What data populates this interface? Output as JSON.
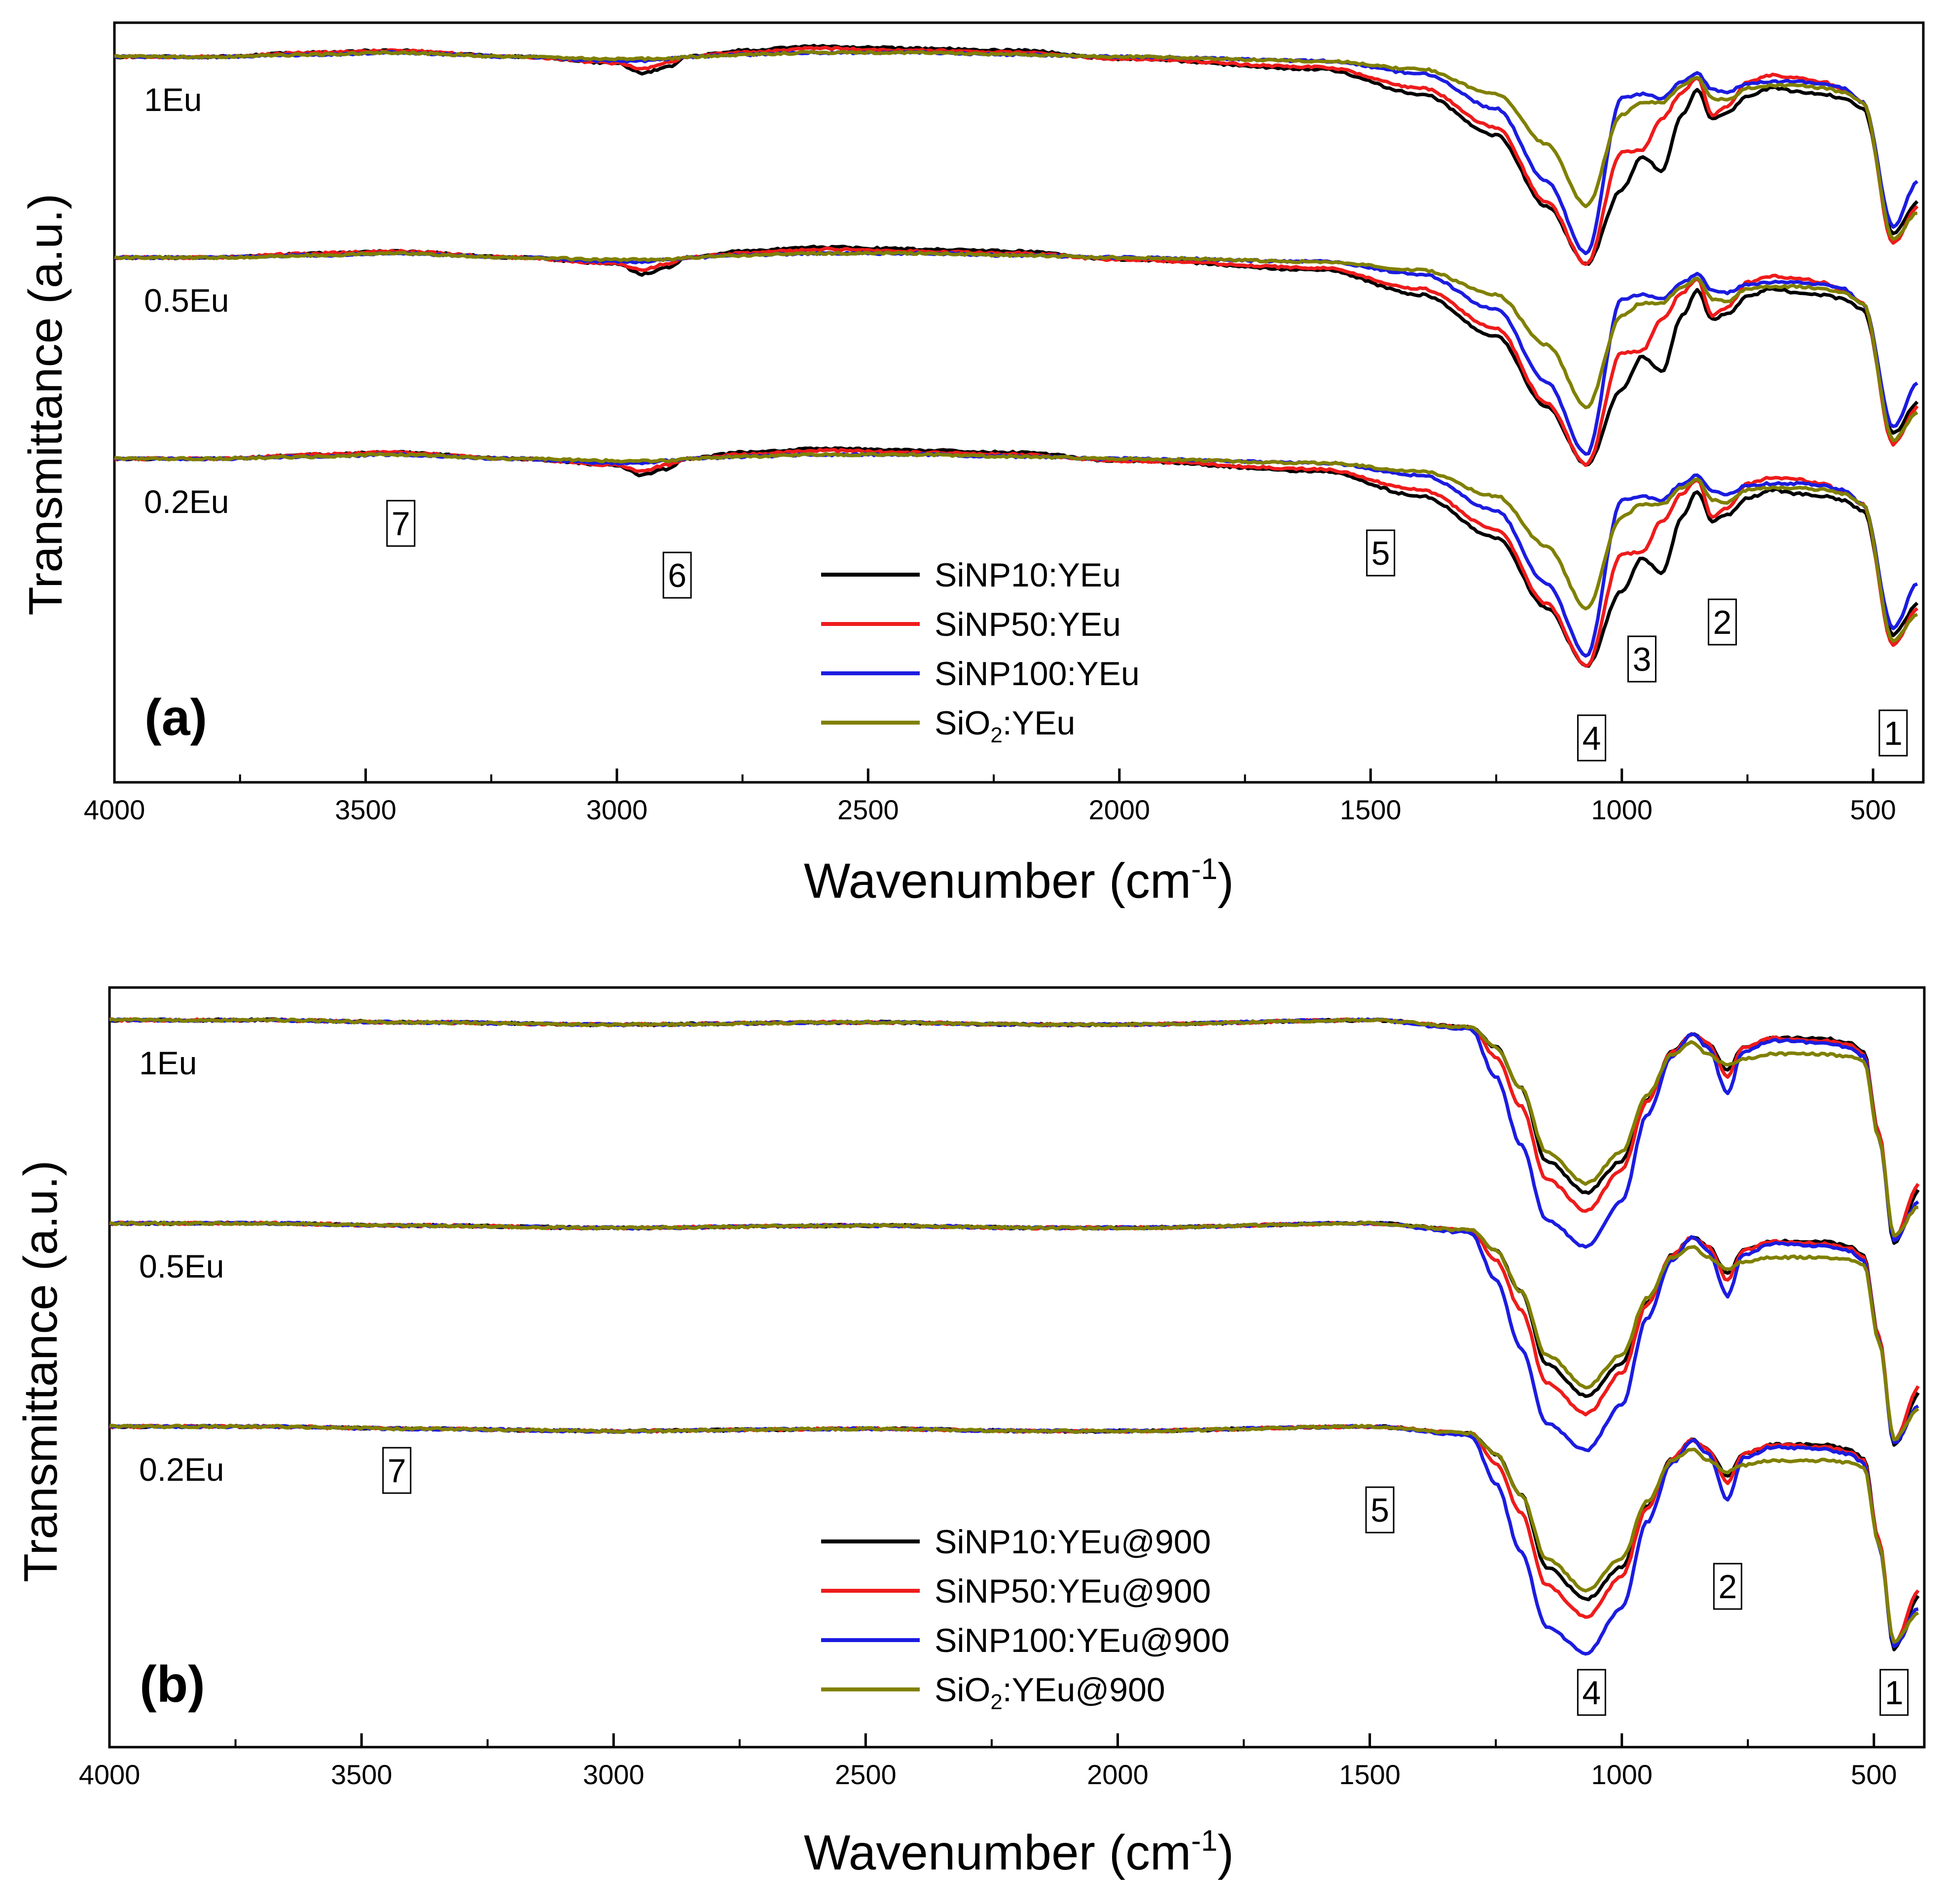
{
  "figure": {
    "panel_count": 2
  },
  "colors": {
    "SiNP10": "#000000",
    "SiNP50": "#ee1c1c",
    "SiNP100": "#1c1ce0",
    "SiO2": "#808000",
    "axis": "#000000"
  },
  "chart_data": [
    {
      "id": "a",
      "type": "line",
      "panel_label": "(a)",
      "xlabel_main": "Wavenumber (cm",
      "xlabel_sup": "-1",
      "xlabel_close": ")",
      "ylabel": "Transmittance (a.u.)",
      "xlim": [
        4000,
        400
      ],
      "x_reversed": true,
      "xticks": [
        4000,
        3500,
        3000,
        2500,
        2000,
        1500,
        1000,
        500
      ],
      "y_ticks_shown": false,
      "offset_groups": [
        "1Eu",
        "0.5Eu",
        "0.2Eu"
      ],
      "series": [
        {
          "name": "SiNP10:YEu",
          "name_main": "SiNP10:YEu",
          "name_sub": "",
          "name_tail": "",
          "color": "#000000",
          "values": [
            0,
            0,
            -0.02,
            -0.03,
            0,
            0.03,
            0.08,
            0.05,
            0,
            -0.03,
            -0.05,
            -0.04,
            -0.03,
            0.01,
            0.06,
            0.18,
            0.38,
            0.72,
            1.0,
            0.64,
            0.48,
            0.55,
            0.28,
            0.16,
            0.3,
            0.27,
            0.19,
            0.15,
            0.17,
            0.18,
            0.2,
            0.25,
            0.85,
            0.7
          ]
        },
        {
          "name": "SiNP50:YEu",
          "name_main": "SiNP50:YEu",
          "name_sub": "",
          "name_tail": "",
          "color": "#ee1c1c",
          "values": [
            0,
            0,
            -0.02,
            -0.03,
            0,
            0.03,
            0.06,
            0.03,
            0,
            -0.02,
            -0.04,
            -0.03,
            -0.02,
            0.01,
            0.05,
            0.15,
            0.34,
            0.7,
            1.0,
            0.46,
            0.45,
            0.3,
            0.17,
            0.1,
            0.28,
            0.24,
            0.12,
            0.09,
            0.1,
            0.12,
            0.16,
            0.22,
            0.9,
            0.72
          ]
        },
        {
          "name": "SiNP100:YEu",
          "name_main": "SiNP100:YEu",
          "name_sub": "",
          "name_tail": "",
          "color": "#1c1ce0",
          "values": [
            0,
            0,
            -0.01,
            -0.02,
            0,
            0.02,
            0.02,
            0.01,
            0,
            -0.01,
            -0.02,
            -0.02,
            -0.01,
            0.0,
            0.02,
            0.08,
            0.25,
            0.6,
            0.95,
            0.2,
            0.18,
            0.2,
            0.12,
            0.08,
            0.16,
            0.17,
            0.13,
            0.12,
            0.12,
            0.13,
            0.15,
            0.22,
            0.82,
            0.6
          ]
        },
        {
          "name": "SiO2:YEu",
          "name_main": "SiO",
          "name_sub": "2",
          "name_tail": ":YEu",
          "color": "#808000",
          "values": [
            0,
            0,
            -0.01,
            -0.02,
            0,
            0.01,
            0.01,
            0.01,
            0,
            -0.01,
            -0.02,
            -0.02,
            -0.01,
            0.0,
            0.02,
            0.06,
            0.18,
            0.42,
            0.72,
            0.28,
            0.22,
            0.22,
            0.14,
            0.1,
            0.2,
            0.21,
            0.15,
            0.14,
            0.14,
            0.15,
            0.17,
            0.22,
            0.88,
            0.75
          ]
        }
      ],
      "band_labels": [
        {
          "text": "1",
          "x": 460
        },
        {
          "text": "2",
          "x": 800
        },
        {
          "text": "3",
          "x": 960
        },
        {
          "text": "4",
          "x": 1060
        },
        {
          "text": "5",
          "x": 1480
        },
        {
          "text": "6",
          "x": 2880
        },
        {
          "text": "7",
          "x": 3430
        }
      ]
    },
    {
      "id": "b",
      "type": "line",
      "panel_label": "(b)",
      "xlabel_main": "Wavenumber (cm",
      "xlabel_sup": "-1",
      "xlabel_close": ")",
      "ylabel": "Transmittance (a.u.)",
      "xlim": [
        4000,
        400
      ],
      "x_reversed": true,
      "xticks": [
        4000,
        3500,
        3000,
        2500,
        2000,
        1500,
        1000,
        500
      ],
      "y_ticks_shown": false,
      "offset_groups": [
        "1Eu",
        "0.5Eu",
        "0.2Eu"
      ],
      "series": [
        {
          "name": "SiNP10:YEu@900",
          "name_main": "SiNP10:YEu@900",
          "name_sub": "",
          "name_tail": "",
          "color": "#000000",
          "values": [
            0,
            0,
            0.01,
            0.02,
            0.01,
            0.02,
            0.02,
            0.0,
            0.03,
            0.12,
            0.3,
            0.62,
            0.76,
            0.62,
            0.35,
            0.14,
            0.06,
            0.1,
            0.22,
            0.12,
            0.08,
            0.08,
            0.1,
            0.14,
            0.5,
            0.98,
            0.75
          ]
        },
        {
          "name": "SiNP50:YEu@900",
          "name_main": "SiNP50:YEu@900",
          "name_sub": "",
          "name_tail": "",
          "color": "#ee1c1c",
          "values": [
            0,
            0,
            0.01,
            0.02,
            0.01,
            0.02,
            0.02,
            0.0,
            0.03,
            0.16,
            0.38,
            0.7,
            0.84,
            0.66,
            0.36,
            0.14,
            0.06,
            0.1,
            0.25,
            0.12,
            0.08,
            0.09,
            0.11,
            0.15,
            0.5,
            0.96,
            0.72
          ]
        },
        {
          "name": "SiNP100:YEu@900",
          "name_main": "SiNP100:YEu@900",
          "name_sub": "",
          "name_tail": "",
          "color": "#1c1ce0",
          "values": [
            0,
            0,
            0.01,
            0.02,
            0.01,
            0.02,
            0.02,
            0.0,
            0.04,
            0.25,
            0.55,
            0.88,
            1.0,
            0.8,
            0.42,
            0.16,
            0.06,
            0.12,
            0.32,
            0.14,
            0.09,
            0.1,
            0.12,
            0.16,
            0.52,
            0.97,
            0.8
          ]
        },
        {
          "name": "SiO2:YEu@900",
          "name_main": "SiO",
          "name_sub": "2",
          "name_tail": ":YEu@900",
          "color": "#808000",
          "values": [
            0,
            0,
            0.01,
            0.02,
            0.01,
            0.02,
            0.02,
            0.0,
            0.03,
            0.12,
            0.3,
            0.58,
            0.72,
            0.58,
            0.33,
            0.15,
            0.1,
            0.15,
            0.2,
            0.17,
            0.15,
            0.15,
            0.16,
            0.18,
            0.52,
            0.95,
            0.82
          ]
        }
      ],
      "band_labels": [
        {
          "text": "1",
          "x": 460
        },
        {
          "text": "2",
          "x": 790
        },
        {
          "text": "4",
          "x": 1060
        },
        {
          "text": "5",
          "x": 1480
        },
        {
          "text": "7",
          "x": 3430
        }
      ]
    }
  ]
}
